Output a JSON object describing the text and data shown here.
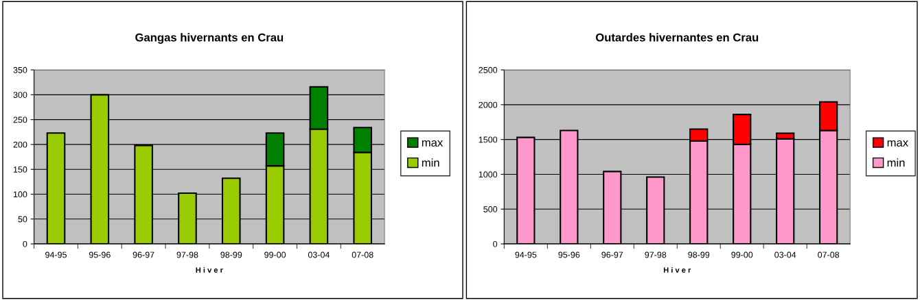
{
  "chart_data": [
    {
      "type": "bar",
      "title": "Gangas hivernants en Crau",
      "xlabel": "H i v e r",
      "categories": [
        "94-95",
        "95-96",
        "96-97",
        "97-98",
        "98-99",
        "99-00",
        "03-04",
        "07-08"
      ],
      "stacked": true,
      "ylim": [
        0,
        350
      ],
      "yticks": [
        0,
        50,
        100,
        150,
        200,
        250,
        300,
        350
      ],
      "grid": "y",
      "legend": "right",
      "series": [
        {
          "name": "min",
          "color": "#99cc00",
          "values": [
            223,
            300,
            198,
            102,
            132,
            157,
            231,
            184
          ]
        },
        {
          "name": "max",
          "color": "#008000",
          "values": [
            null,
            null,
            null,
            null,
            null,
            66,
            85,
            50
          ]
        }
      ]
    },
    {
      "type": "bar",
      "title": "Outardes hivernantes en Crau",
      "xlabel": "H i v e r",
      "categories": [
        "94-95",
        "95-96",
        "96-97",
        "97-98",
        "98-99",
        "99-00",
        "03-04",
        "07-08"
      ],
      "stacked": true,
      "ylim": [
        0,
        2500
      ],
      "yticks": [
        0,
        500,
        1000,
        1500,
        2000,
        2500
      ],
      "grid": "y",
      "legend": "right",
      "series": [
        {
          "name": "min",
          "color": "#ff99cc",
          "values": [
            1530,
            1630,
            1040,
            960,
            1480,
            1430,
            1510,
            1630
          ]
        },
        {
          "name": "max",
          "color": "#ff0000",
          "values": [
            null,
            null,
            null,
            null,
            170,
            430,
            80,
            410
          ]
        }
      ]
    }
  ]
}
